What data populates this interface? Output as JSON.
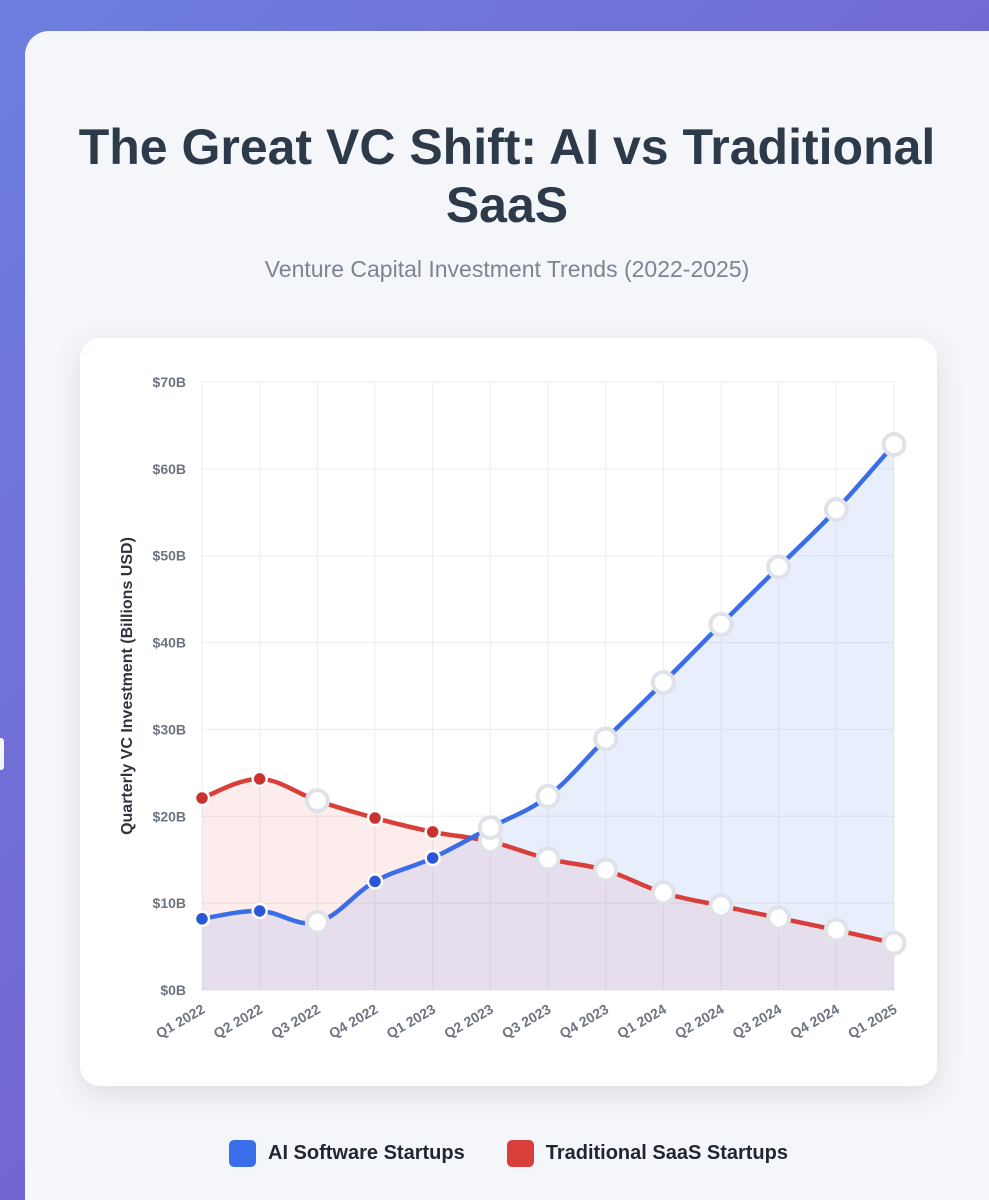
{
  "page": {
    "title": "The Great VC Shift: AI vs Traditional SaaS",
    "subtitle": "Venture Capital Investment Trends (2022-2025)"
  },
  "chart_data": {
    "type": "area",
    "title": "The Great VC Shift: AI vs Traditional SaaS",
    "subtitle": "Venture Capital Investment Trends (2022-2025)",
    "xlabel": "",
    "ylabel": "Quarterly VC Investment (Billions USD)",
    "categories": [
      "Q1 2022",
      "Q2 2022",
      "Q3 2022",
      "Q4 2022",
      "Q1 2023",
      "Q2 2023",
      "Q3 2023",
      "Q4 2023",
      "Q1 2024",
      "Q2 2024",
      "Q3 2024",
      "Q4 2024",
      "Q1 2025"
    ],
    "ylim": [
      0,
      70
    ],
    "y_ticks": [
      "$0B",
      "$10B",
      "$20B",
      "$30B",
      "$40B",
      "$50B",
      "$60B",
      "$70B"
    ],
    "grid": true,
    "legend_position": "bottom",
    "series": [
      {
        "name": "AI Software Startups",
        "color": "#3a6ee8",
        "fill": "#e5ecfc",
        "point_color": "#2a57d6",
        "values": [
          8.2,
          9.1,
          7.8,
          12.5,
          15.2,
          18.7,
          22.3,
          28.9,
          35.4,
          42.1,
          48.7,
          55.3,
          62.8
        ]
      },
      {
        "name": "Traditional SaaS Startups",
        "color": "#d93f3a",
        "fill": "#fde9e7",
        "point_color": "#c9322e",
        "values": [
          22.1,
          24.3,
          21.8,
          19.8,
          18.2,
          17.1,
          15.1,
          13.8,
          11.2,
          9.7,
          8.3,
          6.9,
          5.4
        ]
      }
    ]
  }
}
